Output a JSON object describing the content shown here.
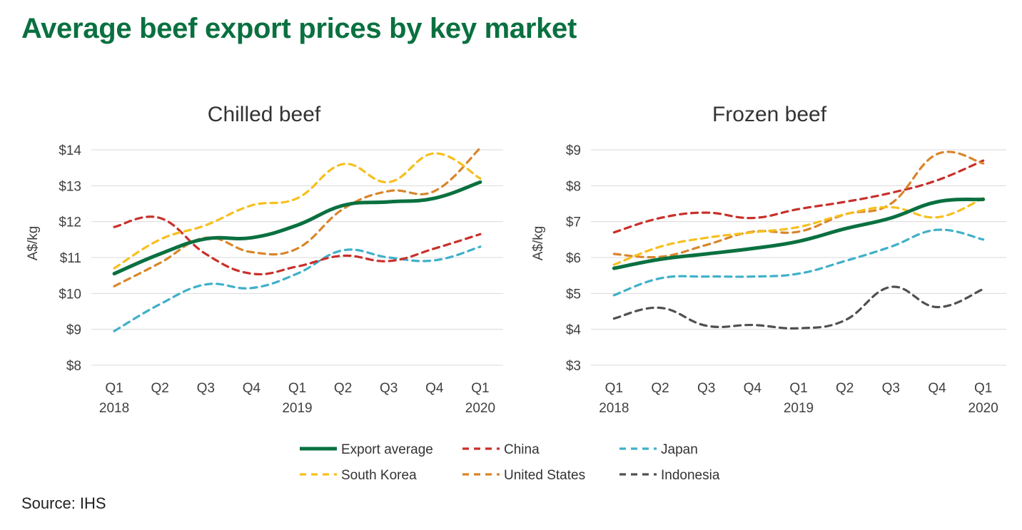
{
  "title": "Average beef export prices by key market",
  "source": "Source: IHS",
  "colors": {
    "export_average": "#0a7040",
    "china": "#c8302a",
    "japan": "#3fb0c9",
    "south_korea": "#f7bf1e",
    "united_states": "#d9852a",
    "indonesia": "#505050",
    "title": "#0a7040"
  },
  "legend": [
    {
      "name": "Export average",
      "key": "export_average",
      "dashed": false
    },
    {
      "name": "China",
      "key": "china",
      "dashed": true
    },
    {
      "name": "Japan",
      "key": "japan",
      "dashed": true
    },
    {
      "name": "South Korea",
      "key": "south_korea",
      "dashed": true
    },
    {
      "name": "United States",
      "key": "united_states",
      "dashed": true
    },
    {
      "name": "Indonesia",
      "key": "indonesia",
      "dashed": true
    }
  ],
  "chart_data": [
    {
      "type": "line",
      "title": "Chilled beef",
      "ylabel": "A$/kg",
      "xlabel": "",
      "categories": [
        "Q1",
        "Q2",
        "Q3",
        "Q4",
        "Q1",
        "Q2",
        "Q3",
        "Q4",
        "Q1"
      ],
      "year_labels": [
        "2018",
        "",
        "",
        "",
        "2019",
        "",
        "",
        "",
        "2020"
      ],
      "ylim": [
        8,
        14
      ],
      "yticks": [
        "$8",
        "$9",
        "$10",
        "$11",
        "$12",
        "$13",
        "$14"
      ],
      "grid": true,
      "series": [
        {
          "name": "Export average",
          "key": "export_average",
          "values": [
            10.55,
            11.1,
            11.52,
            11.55,
            11.9,
            12.45,
            12.55,
            12.65,
            13.1
          ]
        },
        {
          "name": "China",
          "key": "china",
          "values": [
            11.85,
            12.1,
            11.1,
            10.55,
            10.75,
            11.05,
            10.9,
            11.25,
            11.65
          ]
        },
        {
          "name": "Japan",
          "key": "japan",
          "values": [
            8.95,
            9.7,
            10.25,
            10.15,
            10.55,
            11.2,
            11.0,
            10.92,
            11.3
          ]
        },
        {
          "name": "South Korea",
          "key": "south_korea",
          "values": [
            10.7,
            11.5,
            11.9,
            12.45,
            12.65,
            13.6,
            13.1,
            13.9,
            13.2
          ]
        },
        {
          "name": "United States",
          "key": "united_states",
          "values": [
            10.2,
            10.85,
            11.55,
            11.15,
            11.25,
            12.35,
            12.85,
            12.85,
            14.05
          ]
        }
      ]
    },
    {
      "type": "line",
      "title": "Frozen beef",
      "ylabel": "A$/kg",
      "xlabel": "",
      "categories": [
        "Q1",
        "Q2",
        "Q3",
        "Q4",
        "Q1",
        "Q2",
        "Q3",
        "Q4",
        "Q1"
      ],
      "year_labels": [
        "2018",
        "",
        "",
        "",
        "2019",
        "",
        "",
        "",
        "2020"
      ],
      "ylim": [
        3,
        9
      ],
      "yticks": [
        "$3",
        "$4",
        "$5",
        "$6",
        "$7",
        "$8",
        "$9"
      ],
      "grid": true,
      "series": [
        {
          "name": "Export average",
          "key": "export_average",
          "values": [
            5.7,
            5.95,
            6.1,
            6.25,
            6.45,
            6.8,
            7.1,
            7.55,
            7.62
          ]
        },
        {
          "name": "China",
          "key": "china",
          "values": [
            6.7,
            7.1,
            7.25,
            7.1,
            7.35,
            7.55,
            7.8,
            8.15,
            8.7
          ]
        },
        {
          "name": "Japan",
          "key": "japan",
          "values": [
            4.95,
            5.42,
            5.47,
            5.47,
            5.55,
            5.9,
            6.3,
            6.77,
            6.5
          ]
        },
        {
          "name": "South Korea",
          "key": "south_korea",
          "values": [
            5.8,
            6.3,
            6.55,
            6.7,
            6.85,
            7.2,
            7.4,
            7.12,
            7.65
          ]
        },
        {
          "name": "United States",
          "key": "united_states",
          "values": [
            6.1,
            6.02,
            6.35,
            6.72,
            6.72,
            7.2,
            7.5,
            8.88,
            8.62
          ]
        },
        {
          "name": "Indonesia",
          "key": "indonesia",
          "values": [
            4.3,
            4.6,
            4.1,
            4.12,
            4.03,
            4.25,
            5.18,
            4.62,
            5.12
          ]
        }
      ]
    }
  ]
}
